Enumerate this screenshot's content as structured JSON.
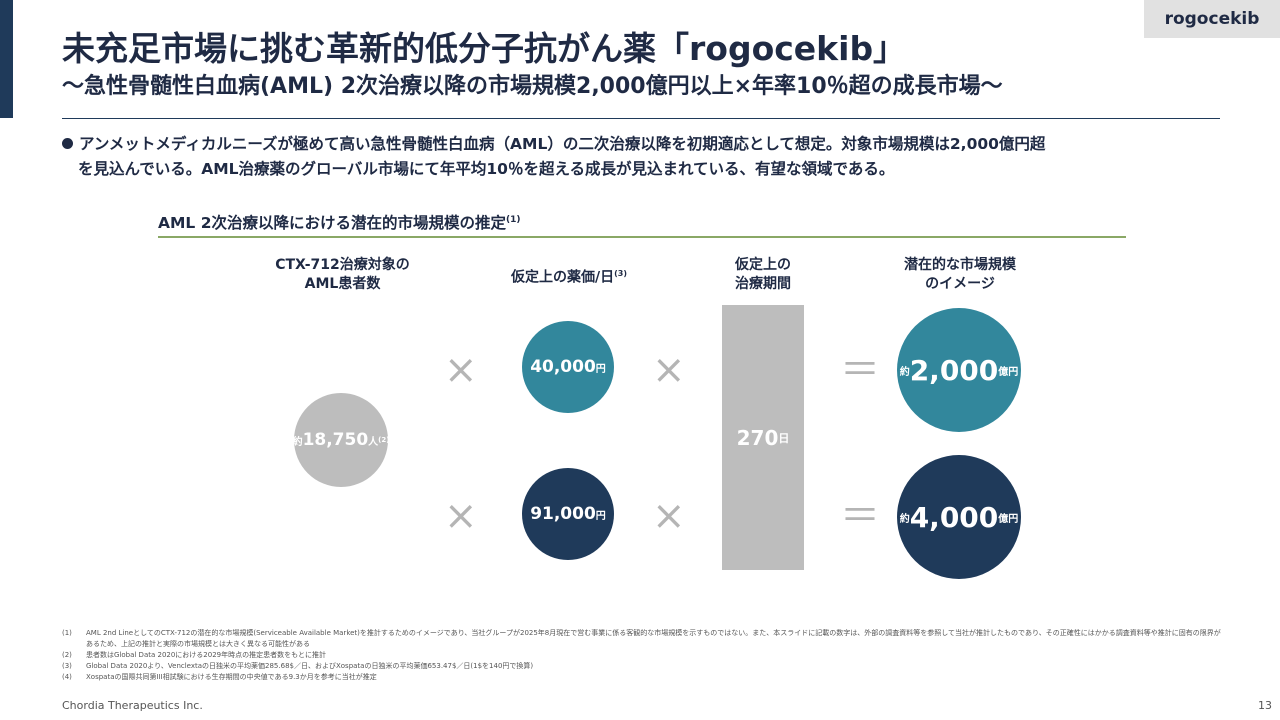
{
  "tag": "rogocekib",
  "title": "未充足市場に挑む革新的低分子抗がん薬「rogocekib」",
  "subtitle": "～急性骨髄性白血病(AML) 2次治療以降の市場規模2,000億円以上×年率10％超の成長市場～",
  "bullet": {
    "line1": "アンメットメディカルニーズが極めて高い急性骨髄性白血病（AML）の二次治療以降を初期適応として想定。対象市場規模は2,000億円超",
    "line2": "を見込んでいる。AML治療薬のグローバル市場にて年平均10％を超える成長が見込まれている、有望な領域である。"
  },
  "section": {
    "title": "AML 2次治療以降における潜在的市場規模の推定",
    "sup": "(1)"
  },
  "columns": {
    "patients": {
      "line1": "CTX-712治療対象の",
      "line2": "AML患者数"
    },
    "price": {
      "label": "仮定上の薬価/日",
      "sup": "(3)"
    },
    "period": {
      "line1": "仮定上の",
      "line2": "治療期間"
    },
    "market": {
      "line1": "潜在的な市場規模",
      "line2": "のイメージ"
    }
  },
  "patients_circle": {
    "prefix": "約",
    "value": "18,750",
    "unit": "人",
    "sup": "(2)"
  },
  "price_top": {
    "value": "40,000",
    "unit": "円"
  },
  "price_bottom": {
    "value": "91,000",
    "unit": "円"
  },
  "period_bar": {
    "value": "270",
    "unit": "日"
  },
  "market_top": {
    "prefix": "約",
    "value": "2,000",
    "unit": "億円"
  },
  "market_bottom": {
    "prefix": "約",
    "value": "4,000",
    "unit": "億円"
  },
  "operators": {
    "times": "×",
    "equals": "＝"
  },
  "colors": {
    "teal": "#32879c",
    "navy": "#1f3a5a",
    "gray_circle": "#bdbdbd",
    "bar": "#bdbdbd",
    "rule_green": "#8aa866"
  },
  "footnotes": [
    {
      "num": "(1)",
      "text": "AML 2nd LineとしてのCTX-712の潜在的な市場規模(Serviceable Available Market)を推計するためのイメージであり、当社グループが2025年8月現在で営む事業に係る客観的な市場規模を示すものではない。また、本スライドに記載の数字は、外部の調査資料等を参照して当社が推計したものであり、その正確性にはかかる調査資料等や推計に固有の限界があるため、上記の推計と実際の市場規模とは大きく異なる可能性がある"
    },
    {
      "num": "(2)",
      "text": "患者数はGlobal Data 2020における2029年時点の推定患者数をもとに推計"
    },
    {
      "num": "(3)",
      "text": "Global Data 2020より、Venclextaの日独米の平均薬価285.68$／日、およびXospataの日独米の平均薬価653.47$／日(1$を140円で換算)"
    },
    {
      "num": "(4)",
      "text": "Xospataの国際共同第III相試験における生存期間の中央値である9.3か月を参考に当社が推定"
    }
  ],
  "company": "Chordia Therapeutics Inc.",
  "page_number": "13"
}
